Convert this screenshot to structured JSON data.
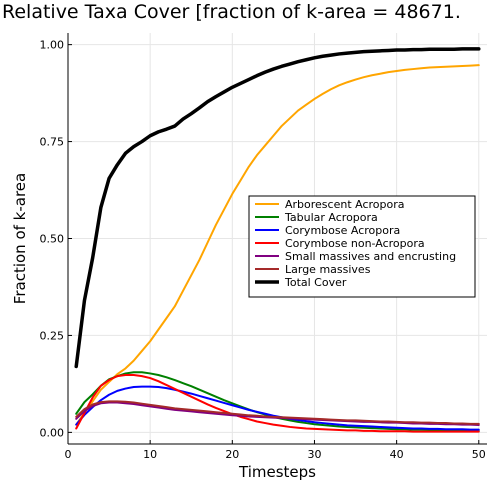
{
  "chart_data": {
    "type": "line",
    "title": "Relative Taxa Cover [fraction of k-area = 48671.",
    "xlabel": "Timesteps",
    "ylabel": "Fraction of k-area",
    "xlim": [
      0,
      51
    ],
    "ylim": [
      -0.03,
      1.03
    ],
    "x_ticks": [
      0,
      10,
      20,
      30,
      40,
      50
    ],
    "y_ticks": [
      0.0,
      0.25,
      0.5,
      0.75,
      1.0
    ],
    "x_tick_labels": [
      "0",
      "10",
      "20",
      "30",
      "40",
      "50"
    ],
    "y_tick_labels": [
      "0.00",
      "0.25",
      "0.50",
      "0.75",
      "1.00"
    ],
    "grid": true,
    "legend_position": "right",
    "x": [
      1,
      2,
      3,
      4,
      5,
      6,
      7,
      8,
      9,
      10,
      11,
      12,
      13,
      14,
      15,
      16,
      17,
      18,
      19,
      20,
      21,
      22,
      23,
      24,
      25,
      26,
      27,
      28,
      29,
      30,
      31,
      32,
      33,
      34,
      35,
      36,
      37,
      38,
      39,
      40,
      41,
      42,
      43,
      44,
      45,
      46,
      47,
      48,
      49,
      50
    ],
    "series": [
      {
        "name": "Arborescent Acropora",
        "color": "#FFA500",
        "width": 2,
        "values": [
          0.02,
          0.05,
          0.08,
          0.11,
          0.13,
          0.15,
          0.165,
          0.185,
          0.21,
          0.235,
          0.265,
          0.295,
          0.325,
          0.365,
          0.405,
          0.445,
          0.49,
          0.535,
          0.575,
          0.615,
          0.65,
          0.685,
          0.715,
          0.74,
          0.765,
          0.79,
          0.81,
          0.83,
          0.845,
          0.86,
          0.873,
          0.885,
          0.895,
          0.903,
          0.91,
          0.916,
          0.921,
          0.925,
          0.929,
          0.932,
          0.935,
          0.937,
          0.939,
          0.941,
          0.942,
          0.943,
          0.944,
          0.945,
          0.946,
          0.947
        ]
      },
      {
        "name": "Tabular Acropora",
        "color": "#008000",
        "width": 2,
        "values": [
          0.048,
          0.078,
          0.098,
          0.12,
          0.137,
          0.145,
          0.152,
          0.155,
          0.155,
          0.152,
          0.148,
          0.142,
          0.135,
          0.127,
          0.119,
          0.11,
          0.101,
          0.092,
          0.083,
          0.075,
          0.067,
          0.059,
          0.052,
          0.046,
          0.04,
          0.035,
          0.031,
          0.027,
          0.024,
          0.021,
          0.019,
          0.017,
          0.015,
          0.014,
          0.013,
          0.012,
          0.011,
          0.01,
          0.009,
          0.008,
          0.008,
          0.007,
          0.007,
          0.006,
          0.006,
          0.005,
          0.005,
          0.005,
          0.004,
          0.004
        ]
      },
      {
        "name": "Corymbose Acropora",
        "color": "#0000FF",
        "width": 2,
        "values": [
          0.02,
          0.045,
          0.065,
          0.083,
          0.097,
          0.107,
          0.113,
          0.117,
          0.118,
          0.118,
          0.117,
          0.114,
          0.11,
          0.105,
          0.1,
          0.094,
          0.088,
          0.082,
          0.076,
          0.07,
          0.064,
          0.058,
          0.053,
          0.048,
          0.043,
          0.039,
          0.035,
          0.032,
          0.029,
          0.026,
          0.024,
          0.022,
          0.02,
          0.018,
          0.017,
          0.016,
          0.015,
          0.014,
          0.013,
          0.012,
          0.011,
          0.01,
          0.01,
          0.009,
          0.009,
          0.008,
          0.008,
          0.008,
          0.007,
          0.007
        ]
      },
      {
        "name": "Corymbose non-Acropora",
        "color": "#FF0000",
        "width": 2,
        "values": [
          0.01,
          0.05,
          0.09,
          0.12,
          0.135,
          0.145,
          0.148,
          0.148,
          0.145,
          0.14,
          0.132,
          0.122,
          0.112,
          0.102,
          0.092,
          0.082,
          0.072,
          0.063,
          0.055,
          0.047,
          0.04,
          0.034,
          0.028,
          0.024,
          0.02,
          0.017,
          0.014,
          0.012,
          0.01,
          0.009,
          0.008,
          0.007,
          0.006,
          0.005,
          0.005,
          0.004,
          0.004,
          0.003,
          0.003,
          0.003,
          0.003,
          0.002,
          0.002,
          0.002,
          0.002,
          0.002,
          0.002,
          0.002,
          0.002,
          0.002
        ]
      },
      {
        "name": "Small massives and encrusting",
        "color": "#800080",
        "width": 2,
        "values": [
          0.035,
          0.055,
          0.068,
          0.075,
          0.077,
          0.077,
          0.075,
          0.073,
          0.07,
          0.067,
          0.064,
          0.061,
          0.058,
          0.056,
          0.054,
          0.052,
          0.05,
          0.048,
          0.046,
          0.044,
          0.043,
          0.041,
          0.04,
          0.039,
          0.038,
          0.037,
          0.036,
          0.035,
          0.034,
          0.033,
          0.032,
          0.031,
          0.03,
          0.029,
          0.028,
          0.027,
          0.027,
          0.026,
          0.025,
          0.025,
          0.024,
          0.023,
          0.023,
          0.022,
          0.022,
          0.021,
          0.021,
          0.02,
          0.02,
          0.019
        ]
      },
      {
        "name": "Large massives",
        "color": "#A52A2A",
        "width": 2,
        "values": [
          0.04,
          0.06,
          0.072,
          0.078,
          0.08,
          0.08,
          0.079,
          0.077,
          0.074,
          0.071,
          0.068,
          0.065,
          0.062,
          0.06,
          0.058,
          0.056,
          0.054,
          0.052,
          0.05,
          0.048,
          0.046,
          0.044,
          0.043,
          0.041,
          0.04,
          0.039,
          0.038,
          0.037,
          0.036,
          0.035,
          0.034,
          0.033,
          0.032,
          0.031,
          0.031,
          0.03,
          0.029,
          0.028,
          0.028,
          0.027,
          0.026,
          0.026,
          0.025,
          0.025,
          0.024,
          0.024,
          0.023,
          0.023,
          0.022,
          0.022
        ]
      },
      {
        "name": "Total Cover",
        "color": "#000000",
        "width": 3.5,
        "values": [
          0.17,
          0.34,
          0.45,
          0.58,
          0.655,
          0.69,
          0.72,
          0.737,
          0.75,
          0.765,
          0.775,
          0.782,
          0.79,
          0.808,
          0.822,
          0.837,
          0.853,
          0.866,
          0.878,
          0.89,
          0.9,
          0.91,
          0.92,
          0.929,
          0.937,
          0.944,
          0.95,
          0.956,
          0.961,
          0.966,
          0.97,
          0.973,
          0.976,
          0.978,
          0.98,
          0.982,
          0.983,
          0.984,
          0.985,
          0.986,
          0.986,
          0.987,
          0.987,
          0.988,
          0.988,
          0.988,
          0.988,
          0.989,
          0.989,
          0.989
        ]
      }
    ]
  }
}
